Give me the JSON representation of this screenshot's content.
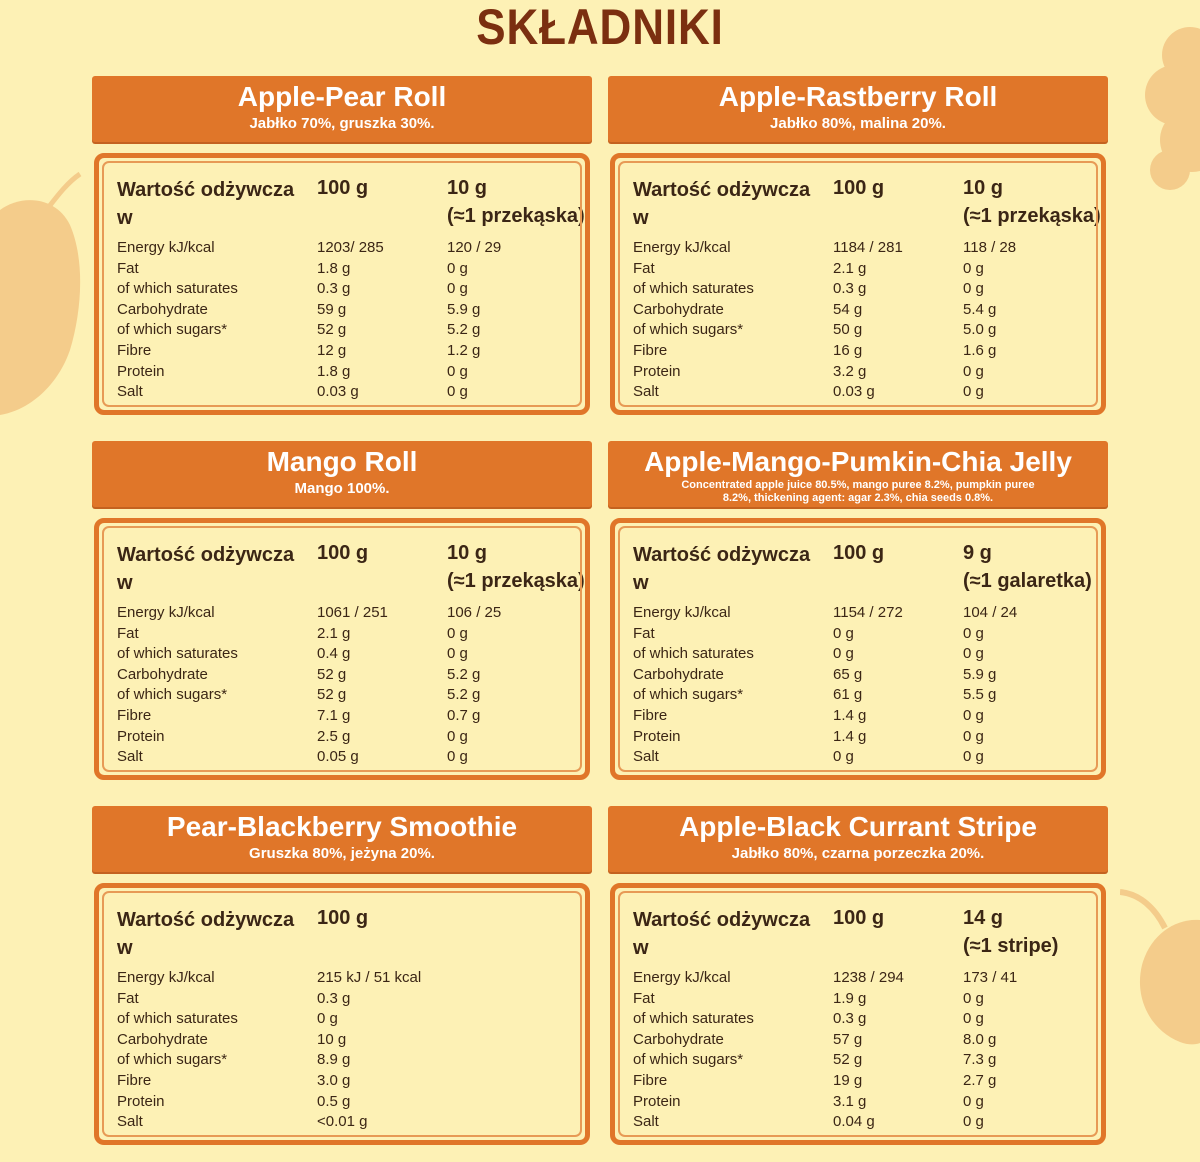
{
  "page": {
    "title": "SKŁADNIKI"
  },
  "labels": {
    "nutrition_header": "Wartość odżywcza w",
    "col_100g": "100 g",
    "nutrients": [
      "Energy kJ/kcal",
      "Fat",
      "of which saturates",
      "Carbohydrate",
      "of which sugars*",
      "Fibre",
      "Protein",
      "Salt"
    ]
  },
  "colors": {
    "background": "#fdf1b5",
    "accent": "#e07629",
    "title": "#7b2f10",
    "decor": "#f4cc8b"
  },
  "products": [
    {
      "name": "Apple-Pear Roll",
      "ingredients": "Jabłko 70%, gruszka 30%.",
      "serving_line1": "10 g",
      "serving_line2": "(≈1 przekąska)",
      "per100": [
        "1203/ 285",
        "1.8 g",
        "0.3 g",
        "59 g",
        "52 g",
        "12 g",
        "1.8 g",
        "0.03 g"
      ],
      "perServing": [
        "120 / 29",
        "0 g",
        "0 g",
        "5.9 g",
        "5.2 g",
        "1.2 g",
        "0 g",
        "0 g"
      ]
    },
    {
      "name": "Apple-Rastberry Roll",
      "ingredients": "Jabłko 80%, malina 20%.",
      "serving_line1": "10 g",
      "serving_line2": "(≈1 przekąska)",
      "per100": [
        "1184 / 281",
        "2.1 g",
        "0.3 g",
        "54 g",
        "50 g",
        "16 g",
        "3.2 g",
        "0.03 g"
      ],
      "perServing": [
        "118 / 28",
        "0 g",
        "0 g",
        "5.4 g",
        "5.0 g",
        "1.6 g",
        "0 g",
        "0 g"
      ]
    },
    {
      "name": "Mango Roll",
      "ingredients": "Mango 100%.",
      "serving_line1": "10 g",
      "serving_line2": "(≈1 przekąska)",
      "per100": [
        "1061 / 251",
        "2.1 g",
        "0.4 g",
        "52 g",
        "52 g",
        "7.1 g",
        "2.5 g",
        "0.05 g"
      ],
      "perServing": [
        "106 / 25",
        "0 g",
        "0 g",
        "5.2 g",
        "5.2 g",
        "0.7 g",
        "0 g",
        "0 g"
      ]
    },
    {
      "name": "Apple-Mango-Pumkin-Chia Jelly",
      "ingredients": "Concentrated apple juice 80.5%, mango puree 8.2%, pumpkin puree 8.2%, thickening agent: agar 2.3%, chia seeds 0.8%.",
      "serving_line1": "9 g",
      "serving_line2": "(≈1 galaretka)",
      "per100": [
        "1154 / 272",
        "0 g",
        "0 g",
        "65 g",
        "61 g",
        "1.4 g",
        "1.4 g",
        "0 g"
      ],
      "perServing": [
        "104 / 24",
        "0 g",
        "0 g",
        "5.9 g",
        "5.5 g",
        "0 g",
        "0 g",
        "0 g"
      ]
    },
    {
      "name": "Pear-Blackberry Smoothie",
      "ingredients": "Gruszka 80%, jeżyna 20%.",
      "serving_line1": "",
      "serving_line2": "",
      "per100": [
        "215 kJ / 51 kcal",
        "0.3 g",
        "0 g",
        "10 g",
        "8.9 g",
        "3.0 g",
        "0.5 g",
        "<0.01 g"
      ],
      "perServing": [
        "",
        "",
        "",
        "",
        "",
        "",
        "",
        ""
      ]
    },
    {
      "name": "Apple-Black Currant Stripe",
      "ingredients": "Jabłko 80%, czarna porzeczka 20%.",
      "serving_line1": "14 g",
      "serving_line2": "(≈1 stripe)",
      "per100": [
        "1238 / 294",
        "1.9 g",
        "0.3 g",
        "57 g",
        "52 g",
        "19 g",
        "3.1 g",
        "0.04 g"
      ],
      "perServing": [
        "173 / 41",
        "0 g",
        "0 g",
        "8.0 g",
        "7.3 g",
        "2.7 g",
        "0 g",
        "0 g"
      ]
    }
  ]
}
